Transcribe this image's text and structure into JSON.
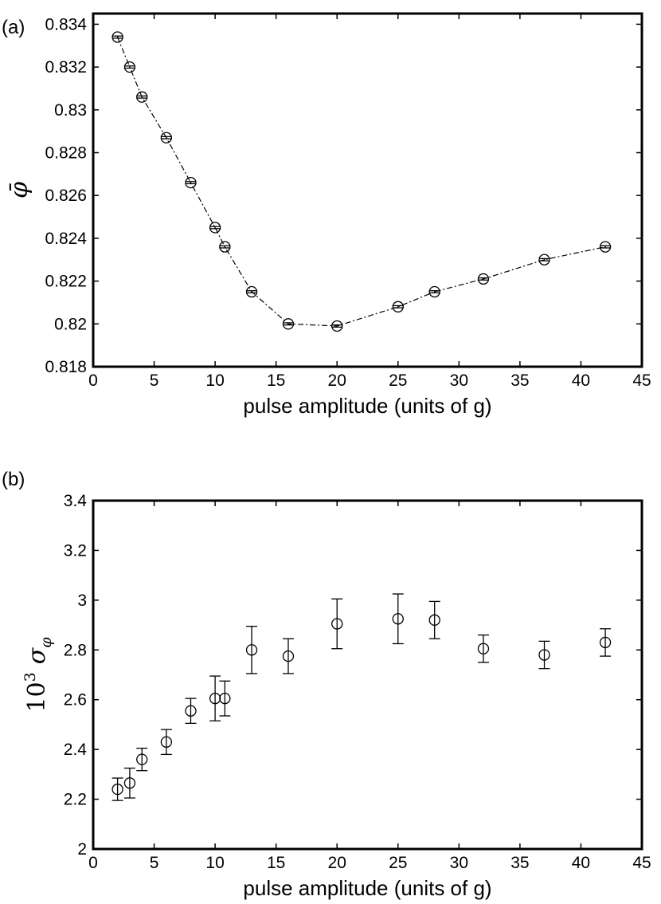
{
  "chart_data": [
    {
      "type": "line",
      "panel_label": "(a)",
      "xlabel": "pulse amplitude (units of g)",
      "ylabel": "φ̄",
      "xlim": [
        0,
        45
      ],
      "ylim": [
        0.818,
        0.8345
      ],
      "xticks": [
        0,
        5,
        10,
        15,
        20,
        25,
        30,
        35,
        40,
        45
      ],
      "yticks": [
        0.818,
        0.82,
        0.822,
        0.824,
        0.826,
        0.828,
        0.83,
        0.832,
        0.834
      ],
      "ytick_labels": [
        "0.818",
        "0.82",
        "0.822",
        "0.824",
        "0.826",
        "0.828",
        "0.83",
        "0.832",
        "0.834"
      ],
      "line_style": "dash-dot",
      "marker": "open-circle",
      "grid": false,
      "series": [
        {
          "x": [
            2,
            3,
            4,
            6,
            8,
            10,
            10.8,
            13,
            16,
            20,
            25,
            28,
            32,
            37,
            42
          ],
          "y": [
            0.8334,
            0.832,
            0.8306,
            0.8287,
            0.8266,
            0.8245,
            0.8236,
            0.8215,
            0.82,
            0.8199,
            0.8208,
            0.8215,
            0.8221,
            0.823,
            0.8236
          ],
          "err": [
            5e-05,
            5e-05,
            5e-05,
            5e-05,
            5e-05,
            5e-05,
            5e-05,
            5e-05,
            5e-05,
            5e-05,
            5e-05,
            5e-05,
            5e-05,
            5e-05,
            5e-05
          ]
        }
      ]
    },
    {
      "type": "scatter",
      "panel_label": "(b)",
      "xlabel": "pulse amplitude (units of g)",
      "ylabel_base": "10",
      "ylabel_exp": "3",
      "ylabel_sym": "σ",
      "ylabel_sub": "φ",
      "xlim": [
        0,
        45
      ],
      "ylim": [
        2,
        3.4
      ],
      "xticks": [
        0,
        5,
        10,
        15,
        20,
        25,
        30,
        35,
        40,
        45
      ],
      "yticks": [
        2,
        2.2,
        2.4,
        2.6,
        2.8,
        3,
        3.2,
        3.4
      ],
      "ytick_labels": [
        "2",
        "2.2",
        "2.4",
        "2.6",
        "2.8",
        "3",
        "3.2",
        "3.4"
      ],
      "marker": "open-circle",
      "grid": false,
      "series": [
        {
          "x": [
            2,
            3,
            4,
            6,
            8,
            10,
            10.8,
            13,
            16,
            20,
            25,
            28,
            32,
            37,
            42
          ],
          "y": [
            2.24,
            2.265,
            2.36,
            2.43,
            2.555,
            2.605,
            2.605,
            2.8,
            2.775,
            2.905,
            2.925,
            2.92,
            2.805,
            2.78,
            2.83
          ],
          "err": [
            0.045,
            0.06,
            0.045,
            0.05,
            0.05,
            0.09,
            0.07,
            0.095,
            0.07,
            0.1,
            0.1,
            0.075,
            0.055,
            0.055,
            0.055
          ]
        }
      ]
    }
  ]
}
